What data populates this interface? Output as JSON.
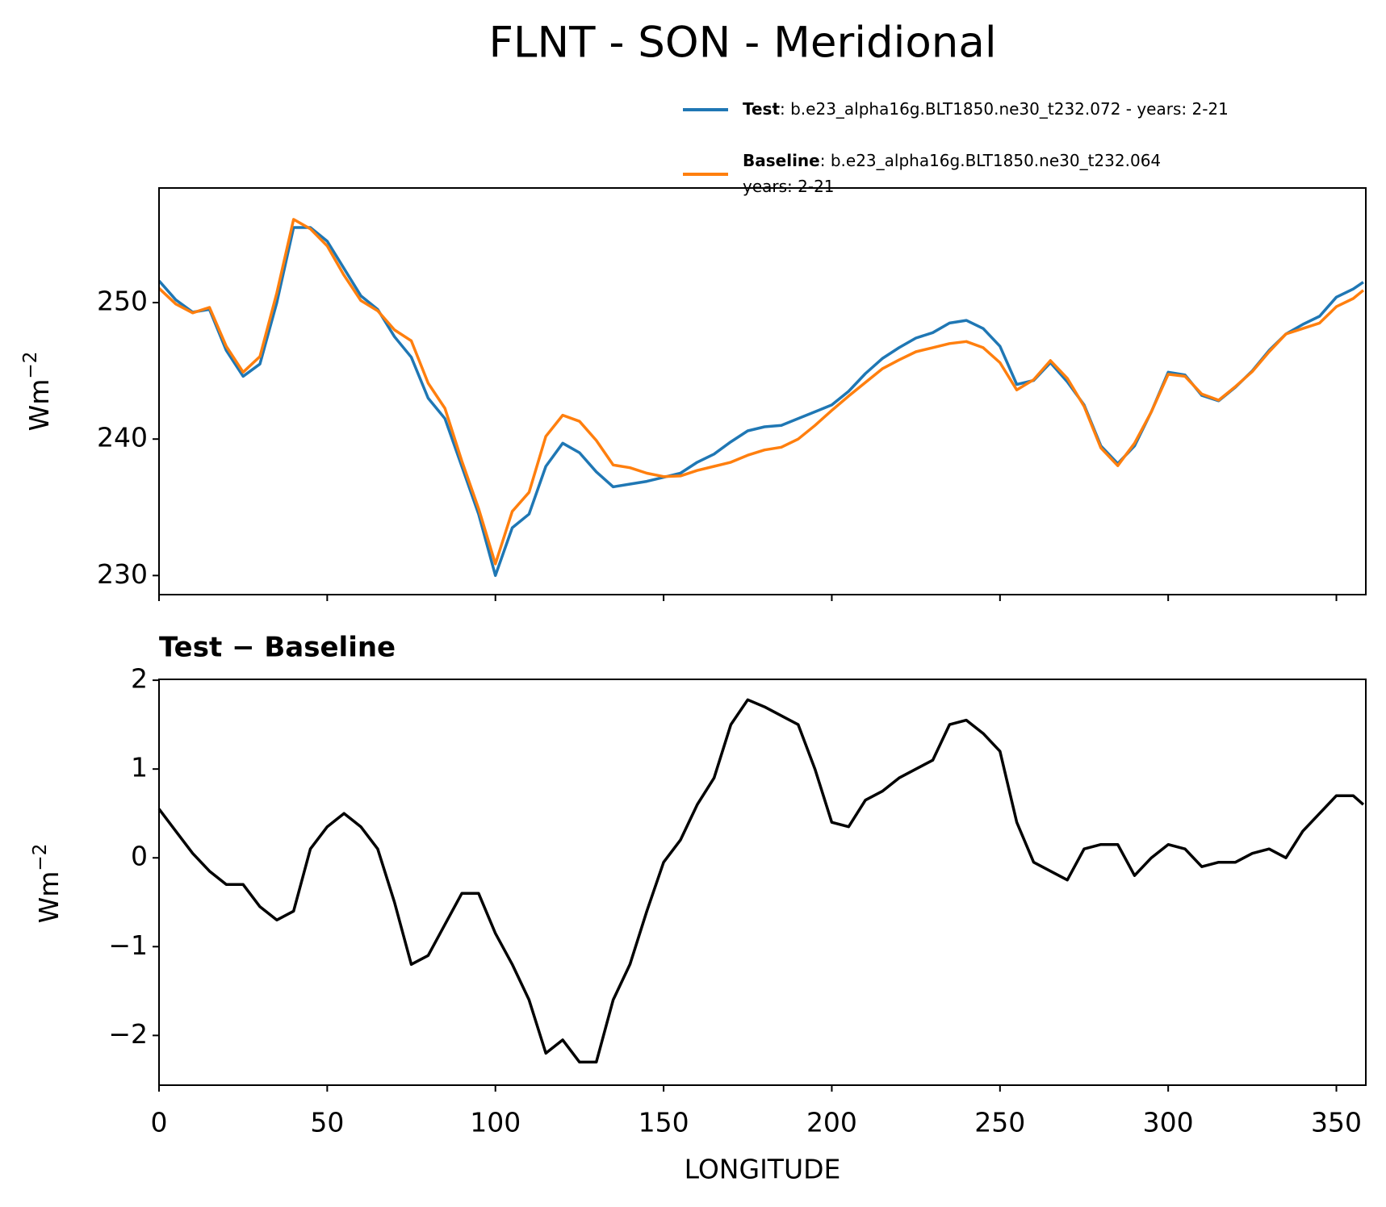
{
  "title": "FLNT - SON - Meridional",
  "chart_data": [
    {
      "type": "line",
      "ylabel": {
        "text": "Wm",
        "superscript": "−2"
      },
      "x": [
        0,
        5,
        10,
        15,
        20,
        25,
        30,
        35,
        40,
        45,
        50,
        55,
        60,
        65,
        70,
        75,
        80,
        85,
        90,
        95,
        100,
        105,
        110,
        115,
        120,
        125,
        130,
        135,
        140,
        145,
        150,
        155,
        160,
        165,
        170,
        175,
        180,
        185,
        190,
        195,
        200,
        205,
        210,
        215,
        220,
        225,
        230,
        235,
        240,
        245,
        250,
        255,
        260,
        265,
        270,
        275,
        280,
        285,
        290,
        295,
        300,
        305,
        310,
        315,
        320,
        325,
        330,
        335,
        340,
        345,
        350,
        355,
        358
      ],
      "series": [
        {
          "name": "Test",
          "description": [
            ": b.e23_alpha16g.BLT1850.ne30_t232.072 - years: 2-21"
          ],
          "color": "#1f77b4",
          "values": [
            251.6,
            250.2,
            249.3,
            249.5,
            246.5,
            244.6,
            245.5,
            250,
            255.5,
            255.5,
            254.5,
            252.5,
            250.5,
            249.5,
            247.5,
            246,
            243,
            241.5,
            238,
            234.5,
            230,
            233.5,
            234.5,
            238,
            239.7,
            239,
            237.6,
            236.5,
            236.7,
            236.9,
            237.2,
            237.5,
            238.3,
            238.9,
            239.8,
            240.6,
            240.9,
            241,
            241.5,
            242,
            242.5,
            243.5,
            244.8,
            245.9,
            246.7,
            247.4,
            247.8,
            248.5,
            248.7,
            248.1,
            246.8,
            244,
            244.3,
            245.6,
            244.2,
            242.5,
            239.5,
            238.2,
            239.5,
            242,
            244.9,
            244.7,
            243.2,
            242.8,
            243.8,
            245,
            246.5,
            247.7,
            248.4,
            249,
            250.4,
            251,
            251.5
          ]
        },
        {
          "name": "Baseline",
          "description": [
            ": b.e23_alpha16g.BLT1850.ne30_t232.064",
            "years: 2-21"
          ],
          "color": "#ff7f0e",
          "values": [
            251.05,
            249.9,
            249.25,
            249.65,
            246.8,
            244.9,
            246.05,
            250.7,
            256.1,
            255.4,
            254.15,
            252,
            250.15,
            249.4,
            248,
            247.2,
            244.1,
            242.25,
            238.4,
            234.9,
            230.85,
            234.7,
            236.1,
            240.2,
            241.75,
            241.3,
            239.9,
            238.1,
            237.9,
            237.5,
            237.25,
            237.3,
            237.7,
            238,
            238.3,
            238.82,
            239.2,
            239.4,
            240,
            241,
            242.1,
            243.15,
            244.15,
            245.15,
            245.8,
            246.4,
            246.7,
            247,
            247.15,
            246.7,
            245.6,
            243.6,
            244.35,
            245.75,
            244.45,
            242.4,
            239.35,
            238.05,
            239.7,
            242,
            244.75,
            244.6,
            243.3,
            242.85,
            243.85,
            244.95,
            246.4,
            247.7,
            248.1,
            248.5,
            249.7,
            250.3,
            250.9
          ]
        }
      ],
      "xlim": [
        0,
        358.75
      ],
      "xticks": [
        0,
        50,
        100,
        150,
        200,
        250,
        300,
        350
      ],
      "ylim": [
        228.6,
        258.4
      ],
      "yticks": [
        230,
        240,
        250
      ]
    },
    {
      "type": "line",
      "title": "Test − Baseline",
      "xlabel": "LONGITUDE",
      "ylabel": {
        "text": "Wm",
        "superscript": "−2"
      },
      "x": [
        0,
        5,
        10,
        15,
        20,
        25,
        30,
        35,
        40,
        45,
        50,
        55,
        60,
        65,
        70,
        75,
        80,
        85,
        90,
        95,
        100,
        105,
        110,
        115,
        120,
        125,
        130,
        135,
        140,
        145,
        150,
        155,
        160,
        165,
        170,
        175,
        180,
        185,
        190,
        195,
        200,
        205,
        210,
        215,
        220,
        225,
        230,
        235,
        240,
        245,
        250,
        255,
        260,
        265,
        270,
        275,
        280,
        285,
        290,
        295,
        300,
        305,
        310,
        315,
        320,
        325,
        330,
        335,
        340,
        345,
        350,
        355,
        358
      ],
      "series": [
        {
          "color": "#000000",
          "values": [
            0.55,
            0.3,
            0.05,
            -0.15,
            -0.3,
            -0.3,
            -0.55,
            -0.7,
            -0.6,
            0.1,
            0.35,
            0.5,
            0.35,
            0.1,
            -0.5,
            -1.2,
            -1.1,
            -0.75,
            -0.4,
            -0.4,
            -0.85,
            -1.2,
            -1.6,
            -2.2,
            -2.05,
            -2.3,
            -2.3,
            -1.6,
            -1.2,
            -0.6,
            -0.05,
            0.2,
            0.6,
            0.9,
            1.5,
            1.78,
            1.7,
            1.6,
            1.5,
            1,
            0.4,
            0.35,
            0.65,
            0.75,
            0.9,
            1,
            1.1,
            1.5,
            1.55,
            1.4,
            1.2,
            0.4,
            -0.05,
            -0.15,
            -0.25,
            0.1,
            0.15,
            0.15,
            -0.2,
            0,
            0.15,
            0.1,
            -0.1,
            -0.05,
            -0.05,
            0.05,
            0.1,
            0,
            0.3,
            0.5,
            0.7,
            0.7,
            0.6
          ]
        }
      ],
      "xlim": [
        0,
        358.75
      ],
      "xticks": [
        0,
        50,
        100,
        150,
        200,
        250,
        300,
        350
      ],
      "ylim": [
        -2.56,
        2.01
      ],
      "yticks": [
        {
          "value": -2,
          "label": "−2"
        },
        {
          "value": -1,
          "label": "−1"
        },
        0,
        1,
        2
      ]
    }
  ]
}
